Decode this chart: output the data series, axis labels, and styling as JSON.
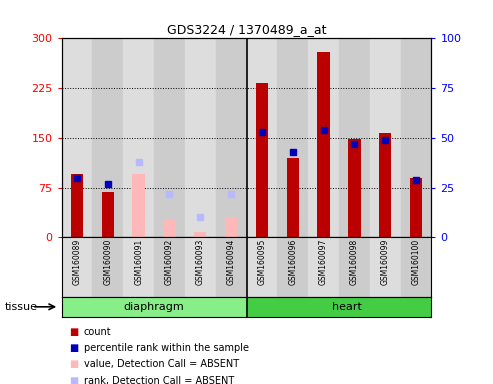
{
  "title": "GDS3224 / 1370489_a_at",
  "samples": [
    "GSM160089",
    "GSM160090",
    "GSM160091",
    "GSM160092",
    "GSM160093",
    "GSM160094",
    "GSM160095",
    "GSM160096",
    "GSM160097",
    "GSM160098",
    "GSM160099",
    "GSM160100"
  ],
  "absent_indices": [
    2,
    3,
    4,
    5
  ],
  "count_values": [
    95,
    68,
    null,
    null,
    null,
    null,
    232,
    120,
    280,
    148,
    158,
    90
  ],
  "count_absent_values": [
    null,
    null,
    95,
    28,
    8,
    30,
    null,
    null,
    null,
    null,
    null,
    null
  ],
  "rank_values": [
    30,
    27,
    null,
    null,
    null,
    null,
    53,
    43,
    54,
    47,
    49,
    29
  ],
  "rank_absent_values": [
    null,
    null,
    38,
    22,
    10,
    22,
    null,
    null,
    null,
    null,
    null,
    null
  ],
  "ylim": [
    0,
    300
  ],
  "y2lim": [
    0,
    100
  ],
  "yticks": [
    0,
    75,
    150,
    225,
    300
  ],
  "y2ticks": [
    0,
    25,
    50,
    75,
    100
  ],
  "bar_width": 0.4,
  "count_color": "#bb0000",
  "rank_color": "#0000bb",
  "absent_count_color": "#ffb8b8",
  "absent_rank_color": "#b8b8ff",
  "diaphragm_color": "#88ee88",
  "heart_color": "#44cc44",
  "tissue_label": "tissue",
  "diaphragm_label": "diaphragm",
  "heart_label": "heart",
  "col_bg_light": "#dddddd",
  "col_bg_dark": "#cccccc",
  "legend_items": [
    {
      "label": "count",
      "color": "#bb0000"
    },
    {
      "label": "percentile rank within the sample",
      "color": "#0000bb"
    },
    {
      "label": "value, Detection Call = ABSENT",
      "color": "#ffb8b8"
    },
    {
      "label": "rank, Detection Call = ABSENT",
      "color": "#b8b8ff"
    }
  ]
}
